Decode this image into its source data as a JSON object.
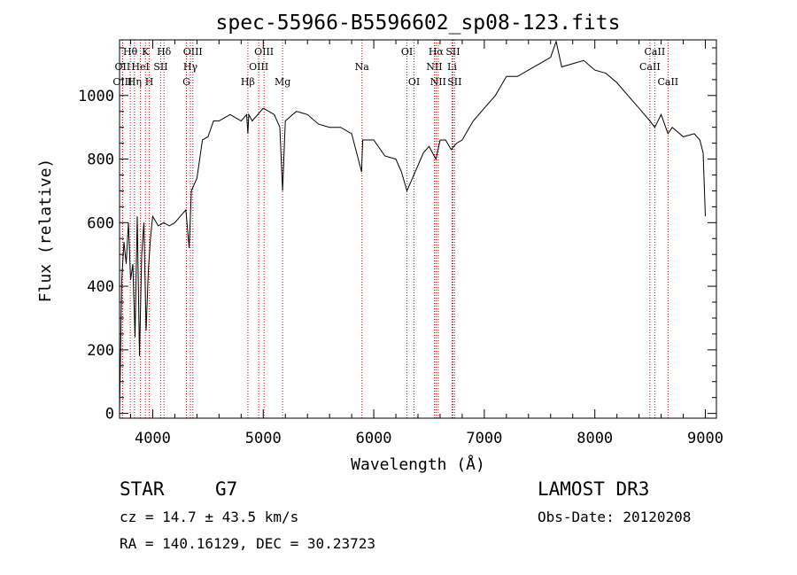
{
  "chart_data": {
    "type": "line",
    "title": "spec-55966-B5596602_sp08-123.fits",
    "xlabel": "Wavelength (Å)",
    "ylabel": "Flux (relative)",
    "xlim": [
      3700,
      9100
    ],
    "ylim": [
      -15,
      1175
    ],
    "x_ticks": [
      4000,
      5000,
      6000,
      7000,
      8000,
      9000
    ],
    "y_ticks": [
      0,
      200,
      400,
      600,
      800,
      1000
    ],
    "grid": false,
    "series": [
      {
        "name": "flux",
        "x": [
          3700,
          3720,
          3740,
          3760,
          3780,
          3800,
          3820,
          3840,
          3860,
          3880,
          3900,
          3920,
          3940,
          3960,
          3980,
          4000,
          4050,
          4100,
          4150,
          4200,
          4250,
          4300,
          4330,
          4350,
          4400,
          4450,
          4500,
          4550,
          4600,
          4700,
          4800,
          4850,
          4861,
          4870,
          4900,
          5000,
          5100,
          5150,
          5175,
          5200,
          5300,
          5400,
          5500,
          5600,
          5700,
          5800,
          5890,
          5900,
          6000,
          6100,
          6200,
          6250,
          6300,
          6350,
          6400,
          6450,
          6500,
          6563,
          6600,
          6650,
          6700,
          6750,
          6800,
          6900,
          7000,
          7100,
          7200,
          7300,
          7400,
          7500,
          7600,
          7650,
          7700,
          7800,
          7900,
          8000,
          8100,
          8200,
          8300,
          8400,
          8498,
          8542,
          8600,
          8662,
          8700,
          8800,
          8900,
          8950,
          8980,
          9000
        ],
        "y": [
          0,
          420,
          540,
          470,
          600,
          420,
          470,
          240,
          620,
          180,
          500,
          600,
          260,
          450,
          550,
          620,
          590,
          600,
          590,
          600,
          620,
          640,
          520,
          700,
          740,
          860,
          870,
          920,
          920,
          940,
          920,
          940,
          880,
          940,
          920,
          960,
          940,
          900,
          700,
          920,
          950,
          940,
          910,
          900,
          900,
          880,
          760,
          860,
          860,
          810,
          800,
          760,
          700,
          740,
          780,
          820,
          840,
          800,
          860,
          860,
          830,
          850,
          860,
          920,
          960,
          1000,
          1060,
          1060,
          1080,
          1100,
          1120,
          1170,
          1090,
          1100,
          1110,
          1080,
          1070,
          1040,
          1000,
          960,
          920,
          900,
          940,
          880,
          900,
          870,
          880,
          860,
          820,
          620
        ]
      }
    ],
    "line_markers": [
      {
        "label": "Hθ",
        "x": 3797,
        "row": 1
      },
      {
        "label": "OII",
        "x": 3727,
        "row": 2
      },
      {
        "label": "OIII",
        "x": 3727,
        "row": 3
      },
      {
        "label": "K",
        "x": 3934,
        "row": 1
      },
      {
        "label": "HeI",
        "x": 3889,
        "row": 2
      },
      {
        "label": "Hη",
        "x": 3835,
        "row": 3
      },
      {
        "label": "SII",
        "x": 4072,
        "row": 2
      },
      {
        "label": "H",
        "x": 3969,
        "row": 3
      },
      {
        "label": "Hδ",
        "x": 4102,
        "row": 1
      },
      {
        "label": "OIII",
        "x": 4363,
        "row": 1
      },
      {
        "label": "Hγ",
        "x": 4341,
        "row": 2
      },
      {
        "label": "G",
        "x": 4305,
        "row": 3
      },
      {
        "label": "OIII",
        "x": 5007,
        "row": 1
      },
      {
        "label": "OIII",
        "x": 4959,
        "row": 2
      },
      {
        "label": "Hβ",
        "x": 4861,
        "row": 3
      },
      {
        "label": "Mg",
        "x": 5175,
        "row": 3
      },
      {
        "label": "Na",
        "x": 5893,
        "row": 2
      },
      {
        "label": "OI",
        "x": 6300,
        "row": 1
      },
      {
        "label": "OI",
        "x": 6364,
        "row": 3
      },
      {
        "label": "Hα",
        "x": 6563,
        "row": 1
      },
      {
        "label": "NII",
        "x": 6548,
        "row": 2
      },
      {
        "label": "NII",
        "x": 6583,
        "row": 3
      },
      {
        "label": "SII",
        "x": 6716,
        "row": 1
      },
      {
        "label": "Li",
        "x": 6708,
        "row": 2
      },
      {
        "label": "SII",
        "x": 6731,
        "row": 3
      },
      {
        "label": "CaII",
        "x": 8542,
        "row": 1
      },
      {
        "label": "CaII",
        "x": 8498,
        "row": 2
      },
      {
        "label": "CaII",
        "x": 8662,
        "row": 3
      }
    ]
  },
  "info": {
    "object_class": "STAR",
    "subclass": "G7",
    "survey": "LAMOST DR3",
    "cz": "cz = 14.7 ± 43.5 km/s",
    "obs_date": "Obs-Date: 20120208",
    "coords": "RA = 140.16129, DEC =  30.23723"
  },
  "colors": {
    "line": "#000000",
    "marker": "#cc0000",
    "background": "#ffffff"
  }
}
